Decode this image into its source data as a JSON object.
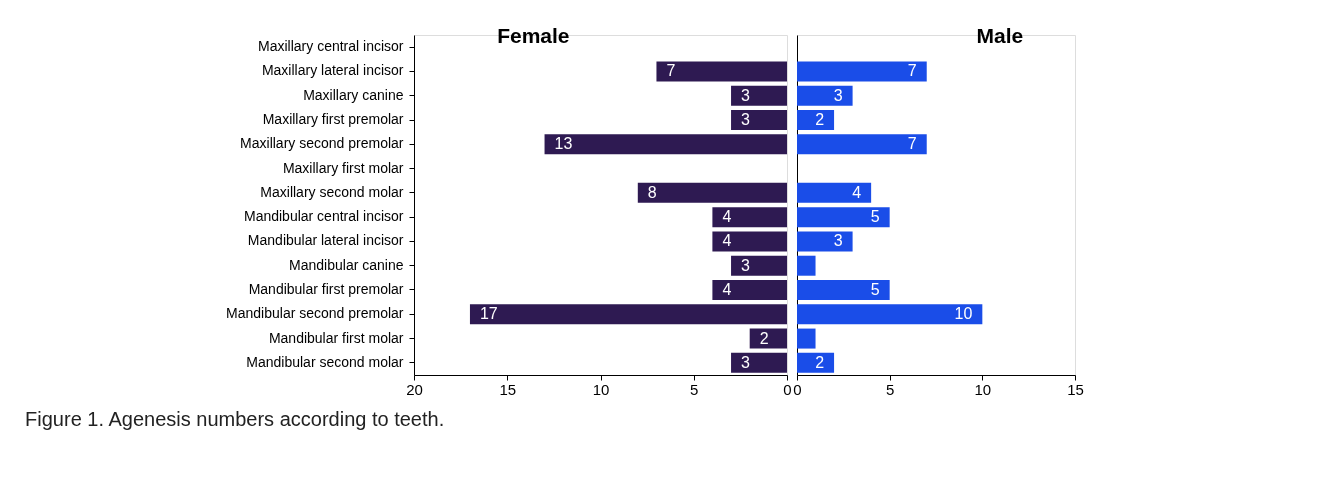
{
  "chart_data": [
    {
      "type": "bar",
      "orientation": "horizontal",
      "title": "Figure 1.  Agenesis numbers according to teeth.",
      "categories": [
        "Maxillary central incisor",
        "Maxillary lateral incisor",
        "Maxillary canine",
        "Maxillary first premolar",
        "Maxillary second premolar",
        "Maxillary first molar",
        "Maxillary second molar",
        "Mandibular central incisor",
        "Mandibular lateral incisor",
        "Mandibular canine",
        "Mandibular first premolar",
        "Mandibular second premolar",
        "Mandibular first molar",
        "Mandibular second molar"
      ],
      "series": [
        {
          "name": "Female",
          "color": "#2e1a52",
          "values": [
            null,
            7,
            3,
            3,
            13,
            null,
            8,
            4,
            4,
            3,
            4,
            17,
            2,
            3
          ],
          "value_labels": [
            null,
            "7",
            "3",
            "3",
            "13",
            null,
            "8",
            "4",
            "4",
            "3",
            "4",
            "17",
            "2",
            "3"
          ]
        }
      ],
      "xlim": [
        20,
        0
      ],
      "xticks": [
        20,
        15,
        10,
        5,
        0
      ],
      "grid": false,
      "legend": false
    },
    {
      "type": "bar",
      "orientation": "horizontal",
      "categories": [
        null,
        null,
        null,
        null,
        null,
        null,
        null,
        null,
        null,
        null,
        null,
        null,
        null,
        null
      ],
      "series": [
        {
          "name": "Male",
          "color": "#1a4de8",
          "values": [
            null,
            7,
            3,
            2,
            7,
            null,
            4,
            5,
            3,
            1,
            5,
            10,
            1,
            2
          ],
          "value_labels": [
            null,
            "7",
            "3",
            "2",
            "7",
            null,
            "4",
            "5",
            "3",
            null,
            "5",
            "10",
            null,
            "2"
          ]
        }
      ],
      "xlim": [
        0,
        15
      ],
      "xticks": [
        0,
        5,
        10,
        15
      ],
      "tick_labels": "x",
      "grid": false,
      "legend": false
    }
  ]
}
